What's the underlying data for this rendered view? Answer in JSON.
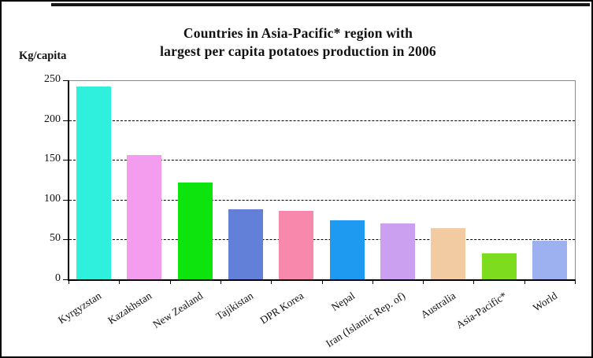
{
  "header": {
    "title_line1": "Countries in Asia-Pacific* region with",
    "title_line2": "largest per capita potatoes production in 2006"
  },
  "chart_data": {
    "type": "bar",
    "title": "Countries in Asia-Pacific* region with largest per capita potatoes production in 2006",
    "xlabel": "",
    "ylabel": "Kg/capita",
    "categories": [
      "Kyrgyzstan",
      "Kazakhstan",
      "New Zealand",
      "Tajikistan",
      "DPR Korea",
      "Nepal",
      "Iran (Islamic Rep. of)",
      "Australia",
      "Asia-Pacific*",
      "World"
    ],
    "values": [
      242,
      156,
      122,
      88,
      86,
      74,
      70,
      64,
      33,
      48
    ],
    "bar_colors": [
      "#2FF0DC",
      "#F49CEE",
      "#0DE30D",
      "#6380D8",
      "#F888AC",
      "#1E9BF0",
      "#CBA0F0",
      "#F2CBA2",
      "#7EDC1E",
      "#9DB0F0"
    ],
    "ylim": [
      0,
      250
    ],
    "yticks": [
      0,
      50,
      100,
      150,
      200,
      250
    ],
    "grid": "horizontal dashed lines at 50, 100, 150, 200",
    "legend": "none"
  }
}
